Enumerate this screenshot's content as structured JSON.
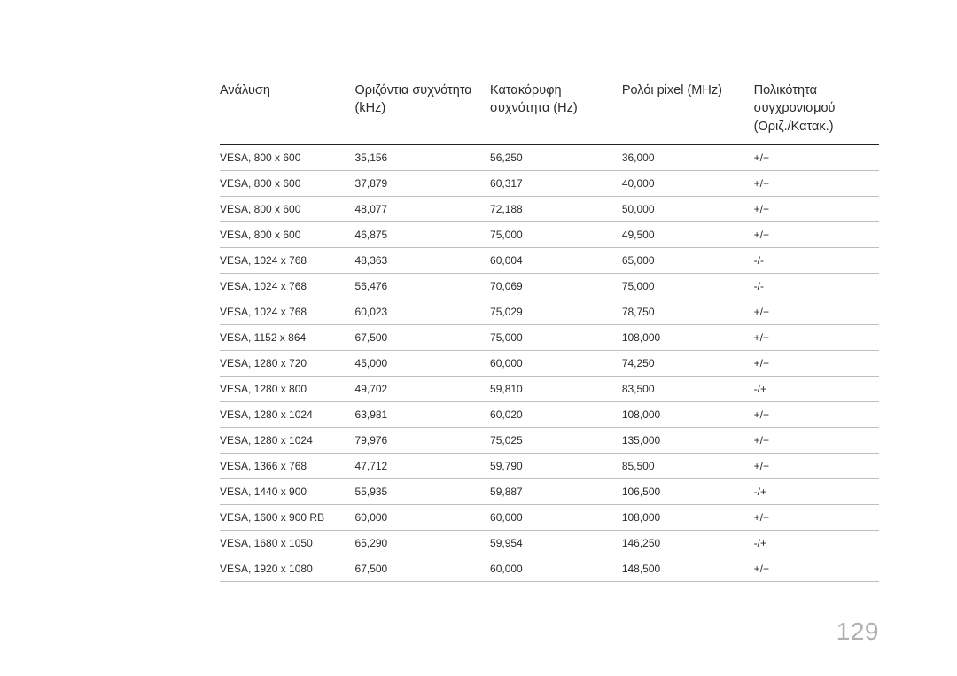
{
  "page_number": "129",
  "table": {
    "columns": [
      "Ανάλυση",
      "Οριζόντια συχνότητα (kHz)",
      "Κατακόρυφη συχνότητα (Hz)",
      "Ρολόι pixel (MHz)",
      "Πολικότητα συγχρονισμού (Οριζ./Κατακ.)"
    ],
    "rows": [
      [
        "VESA, 800 x 600",
        "35,156",
        "56,250",
        "36,000",
        "+/+"
      ],
      [
        "VESA, 800 x 600",
        "37,879",
        "60,317",
        "40,000",
        "+/+"
      ],
      [
        "VESA, 800 x 600",
        "48,077",
        "72,188",
        "50,000",
        "+/+"
      ],
      [
        "VESA, 800 x 600",
        "46,875",
        "75,000",
        "49,500",
        "+/+"
      ],
      [
        "VESA, 1024 x 768",
        "48,363",
        "60,004",
        "65,000",
        "-/-"
      ],
      [
        "VESA, 1024 x 768",
        "56,476",
        "70,069",
        "75,000",
        "-/-"
      ],
      [
        "VESA, 1024 x 768",
        "60,023",
        "75,029",
        "78,750",
        "+/+"
      ],
      [
        "VESA, 1152 x 864",
        "67,500",
        "75,000",
        "108,000",
        "+/+"
      ],
      [
        "VESA, 1280 x 720",
        "45,000",
        "60,000",
        "74,250",
        "+/+"
      ],
      [
        "VESA, 1280 x 800",
        "49,702",
        "59,810",
        "83,500",
        "-/+"
      ],
      [
        "VESA, 1280 x 1024",
        "63,981",
        "60,020",
        "108,000",
        "+/+"
      ],
      [
        "VESA, 1280 x 1024",
        "79,976",
        "75,025",
        "135,000",
        "+/+"
      ],
      [
        "VESA, 1366 x 768",
        "47,712",
        "59,790",
        "85,500",
        "+/+"
      ],
      [
        "VESA, 1440 x 900",
        "55,935",
        "59,887",
        "106,500",
        "-/+"
      ],
      [
        "VESA, 1600 x 900 RB",
        "60,000",
        "60,000",
        "108,000",
        "+/+"
      ],
      [
        "VESA, 1680 x 1050",
        "65,290",
        "59,954",
        "146,250",
        "-/+"
      ],
      [
        "VESA, 1920 x 1080",
        "67,500",
        "60,000",
        "148,500",
        "+/+"
      ]
    ]
  }
}
